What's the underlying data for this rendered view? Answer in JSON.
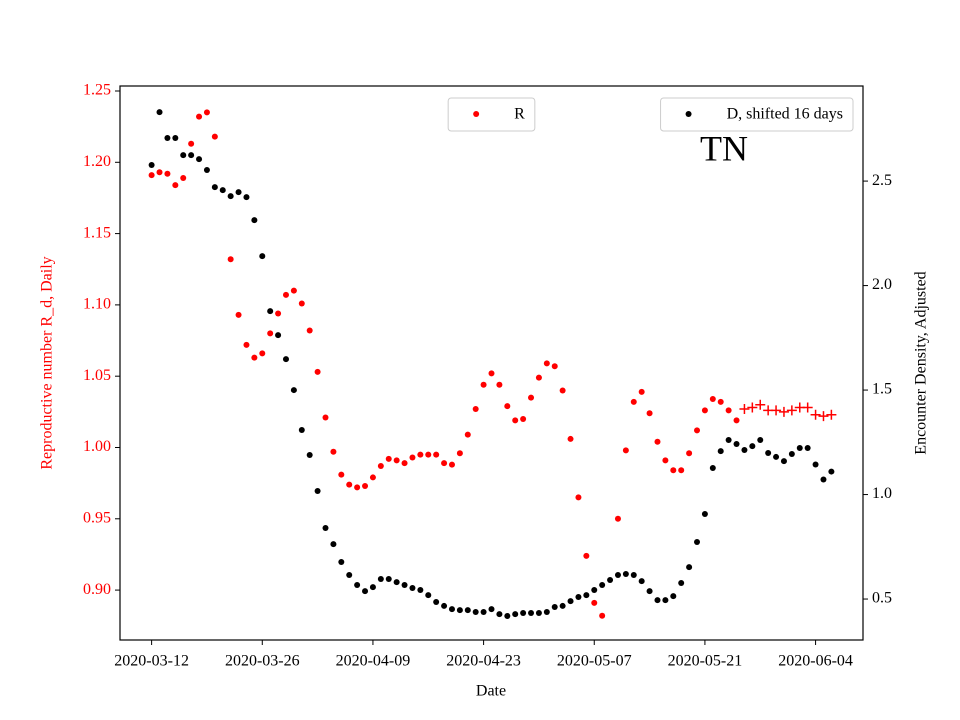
{
  "chart_data": {
    "type": "scatter",
    "annotation": "TN",
    "xlabel": "Date",
    "ylabel": "Reproductive number R_d, Daily",
    "y2label": "Encounter Density, Adjusted",
    "ylabel_color": "#ff0000",
    "x": [
      "2020-03-12",
      "2020-03-13",
      "2020-03-14",
      "2020-03-15",
      "2020-03-16",
      "2020-03-17",
      "2020-03-18",
      "2020-03-19",
      "2020-03-20",
      "2020-03-21",
      "2020-03-22",
      "2020-03-23",
      "2020-03-24",
      "2020-03-25",
      "2020-03-26",
      "2020-03-27",
      "2020-03-28",
      "2020-03-29",
      "2020-03-30",
      "2020-03-31",
      "2020-04-01",
      "2020-04-02",
      "2020-04-03",
      "2020-04-04",
      "2020-04-05",
      "2020-04-06",
      "2020-04-07",
      "2020-04-08",
      "2020-04-09",
      "2020-04-10",
      "2020-04-11",
      "2020-04-12",
      "2020-04-13",
      "2020-04-14",
      "2020-04-15",
      "2020-04-16",
      "2020-04-17",
      "2020-04-18",
      "2020-04-19",
      "2020-04-20",
      "2020-04-21",
      "2020-04-22",
      "2020-04-23",
      "2020-04-24",
      "2020-04-25",
      "2020-04-26",
      "2020-04-27",
      "2020-04-28",
      "2020-04-29",
      "2020-04-30",
      "2020-05-01",
      "2020-05-02",
      "2020-05-03",
      "2020-05-04",
      "2020-05-05",
      "2020-05-06",
      "2020-05-07",
      "2020-05-08",
      "2020-05-09",
      "2020-05-10",
      "2020-05-11",
      "2020-05-12",
      "2020-05-13",
      "2020-05-14",
      "2020-05-15",
      "2020-05-16",
      "2020-05-17",
      "2020-05-18",
      "2020-05-19",
      "2020-05-20",
      "2020-05-21",
      "2020-05-22",
      "2020-05-23",
      "2020-05-24",
      "2020-05-25",
      "2020-05-26",
      "2020-05-27",
      "2020-05-28",
      "2020-05-29",
      "2020-05-30",
      "2020-05-31",
      "2020-06-01",
      "2020-06-02",
      "2020-06-03",
      "2020-06-04",
      "2020-06-05",
      "2020-06-06"
    ],
    "xlim": [
      "2020-03-08",
      "2020-06-10"
    ],
    "xticks": [
      "2020-03-12",
      "2020-03-26",
      "2020-04-09",
      "2020-04-23",
      "2020-05-07",
      "2020-05-21",
      "2020-06-04"
    ],
    "ylim": [
      0.865,
      1.2535
    ],
    "yticks": [
      {
        "value": 0.9,
        "label": "0.90"
      },
      0.95,
      {
        "value": 1.0,
        "label": "1.00"
      },
      1.05,
      {
        "value": 1.1,
        "label": "1.10"
      },
      1.15,
      {
        "value": 1.2,
        "label": "1.20"
      },
      1.25
    ],
    "y2lim": [
      0.304,
      2.955
    ],
    "y2ticks": [
      0.5,
      {
        "value": 1.0,
        "label": "1.0"
      },
      1.5,
      {
        "value": 2.0,
        "label": "2.0"
      },
      2.5
    ],
    "series": [
      {
        "name": "R",
        "color": "#ff0000",
        "marker": "o",
        "legend": "upper center",
        "values": [
          1.191,
          1.193,
          1.192,
          1.184,
          1.189,
          1.213,
          1.232,
          1.235,
          1.218,
          null,
          1.132,
          1.093,
          1.072,
          1.063,
          1.066,
          1.08,
          1.094,
          1.107,
          1.11,
          1.101,
          1.082,
          1.053,
          1.021,
          0.997,
          0.981,
          0.974,
          0.972,
          0.973,
          0.979,
          0.987,
          0.992,
          0.991,
          0.989,
          0.993,
          0.995,
          0.995,
          0.995,
          0.989,
          0.988,
          0.996,
          1.009,
          1.027,
          1.044,
          1.052,
          1.044,
          1.029,
          1.019,
          1.02,
          1.035,
          1.049,
          1.059,
          1.057,
          1.04,
          1.006,
          0.965,
          0.924,
          0.891,
          0.882,
          null,
          0.95,
          0.998,
          1.032,
          1.039,
          1.024,
          1.004,
          0.991,
          0.984,
          0.984,
          0.996,
          1.012,
          1.026,
          1.034,
          1.032,
          1.026,
          1.019,
          null,
          null,
          null,
          null,
          null,
          null,
          null,
          null,
          null,
          null,
          null,
          null
        ]
      },
      {
        "color": "#ff0000",
        "marker": "+",
        "values": [
          null,
          null,
          null,
          null,
          null,
          null,
          null,
          null,
          null,
          null,
          null,
          null,
          null,
          null,
          null,
          null,
          null,
          null,
          null,
          null,
          null,
          null,
          null,
          null,
          null,
          null,
          null,
          null,
          null,
          null,
          null,
          null,
          null,
          null,
          null,
          null,
          null,
          null,
          null,
          null,
          null,
          null,
          null,
          null,
          null,
          null,
          null,
          null,
          null,
          null,
          null,
          null,
          null,
          null,
          null,
          null,
          null,
          null,
          null,
          null,
          null,
          null,
          null,
          null,
          null,
          null,
          null,
          null,
          null,
          null,
          null,
          null,
          null,
          null,
          null,
          1.027,
          1.028,
          1.03,
          1.026,
          1.026,
          1.025,
          1.026,
          1.028,
          1.028,
          1.023,
          1.022,
          1.023
        ]
      },
      {
        "name": "D, shifted 16 days",
        "color": "#000000",
        "marker": "o",
        "axis": "y2",
        "legend": "upper right",
        "values": [
          2.577,
          2.83,
          2.706,
          2.706,
          2.624,
          2.624,
          2.605,
          2.553,
          2.471,
          2.457,
          2.428,
          2.447,
          2.423,
          2.313,
          2.141,
          1.878,
          1.763,
          1.648,
          1.5,
          1.309,
          1.189,
          1.017,
          0.84,
          0.763,
          0.677,
          0.615,
          0.567,
          0.538,
          0.557,
          0.596,
          0.596,
          0.581,
          0.567,
          0.553,
          0.543,
          0.519,
          0.486,
          0.467,
          0.452,
          0.447,
          0.447,
          0.438,
          0.438,
          0.452,
          0.428,
          0.419,
          0.428,
          0.433,
          0.433,
          0.433,
          0.438,
          0.462,
          0.467,
          0.49,
          0.51,
          0.519,
          0.543,
          0.567,
          0.591,
          0.615,
          0.62,
          0.615,
          0.586,
          0.538,
          0.495,
          0.495,
          0.514,
          0.577,
          0.653,
          0.773,
          0.907,
          1.127,
          1.208,
          1.261,
          1.242,
          1.213,
          1.232,
          1.261,
          1.199,
          1.18,
          1.16,
          1.194,
          1.223,
          1.223,
          1.144,
          1.072,
          1.11
        ]
      }
    ]
  }
}
